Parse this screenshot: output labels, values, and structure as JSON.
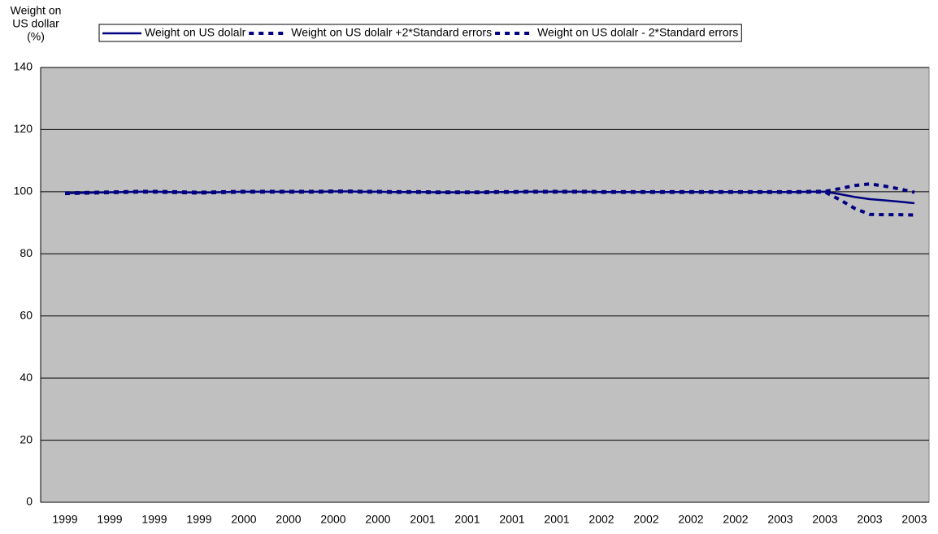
{
  "chart_data": {
    "type": "line",
    "ylabel": [
      "Weight on",
      "US dollar",
      "(%)"
    ],
    "categories": [
      "1999",
      null,
      null,
      "1999",
      null,
      null,
      "1999",
      null,
      null,
      "1999",
      null,
      null,
      "2000",
      null,
      null,
      "2000",
      null,
      null,
      "2000",
      null,
      null,
      "2000",
      null,
      null,
      "2001",
      null,
      null,
      "2001",
      null,
      null,
      "2001",
      null,
      null,
      "2001",
      null,
      null,
      "2002",
      null,
      null,
      "2002",
      null,
      null,
      "2002",
      null,
      null,
      "2002",
      null,
      null,
      "2003",
      null,
      null,
      "2003",
      null,
      null,
      "2003",
      null,
      null,
      "2003"
    ],
    "series": [
      {
        "name": "Weight on US dolalr",
        "color": "#000080",
        "dash": false,
        "values": [
          99.5,
          99.6,
          99.7,
          99.8,
          99.9,
          100,
          100,
          99.9,
          99.8,
          99.7,
          99.8,
          99.9,
          100,
          100,
          100,
          100,
          100,
          100,
          100.1,
          100.1,
          100,
          100,
          99.9,
          99.9,
          99.9,
          99.8,
          99.8,
          99.8,
          99.8,
          99.9,
          99.9,
          100,
          100,
          100,
          100,
          100,
          99.9,
          99.9,
          99.9,
          99.9,
          99.9,
          99.9,
          99.9,
          99.9,
          99.9,
          99.9,
          99.9,
          99.9,
          99.9,
          99.9,
          100,
          100,
          99.2,
          98.3,
          97.6,
          97.2,
          96.8,
          96.3
        ]
      },
      {
        "name": "Weight on US dolalr +2*Standard errors",
        "color": "#000080",
        "dash": true,
        "values": [
          99.6,
          99.7,
          99.8,
          99.9,
          100,
          100.1,
          100.1,
          100,
          99.9,
          99.8,
          99.9,
          100,
          100.1,
          100.1,
          100.1,
          100.1,
          100.1,
          100.1,
          100.2,
          100.2,
          100.1,
          100.1,
          100,
          100,
          100,
          99.9,
          99.9,
          99.9,
          99.9,
          100,
          100,
          100.1,
          100.1,
          100.1,
          100.1,
          100.1,
          100,
          100,
          100,
          100,
          100,
          100,
          100,
          100,
          100,
          100,
          100,
          100,
          100,
          100,
          100.1,
          100.1,
          101,
          102,
          102.5,
          101.8,
          100.9,
          99.8
        ]
      },
      {
        "name": "Weight on US dolalr - 2*Standard errors",
        "color": "#000080",
        "dash": true,
        "values": [
          99.4,
          99.5,
          99.6,
          99.7,
          99.8,
          99.9,
          99.9,
          99.8,
          99.7,
          99.6,
          99.7,
          99.8,
          99.9,
          99.9,
          99.9,
          99.9,
          99.9,
          99.9,
          100,
          100,
          99.9,
          99.9,
          99.8,
          99.8,
          99.8,
          99.7,
          99.7,
          99.7,
          99.7,
          99.8,
          99.8,
          99.9,
          99.9,
          99.9,
          99.9,
          99.9,
          99.8,
          99.8,
          99.8,
          99.8,
          99.8,
          99.8,
          99.8,
          99.8,
          99.8,
          99.8,
          99.8,
          99.8,
          99.8,
          99.8,
          99.9,
          99.9,
          97.4,
          94.6,
          92.7,
          92.6,
          92.6,
          92.5
        ]
      }
    ],
    "ylim": [
      0,
      140
    ],
    "yticks": [
      0,
      20,
      40,
      60,
      80,
      100,
      120,
      140
    ],
    "grid": true,
    "legend": "top",
    "plot_background": "#c0c0c0"
  }
}
